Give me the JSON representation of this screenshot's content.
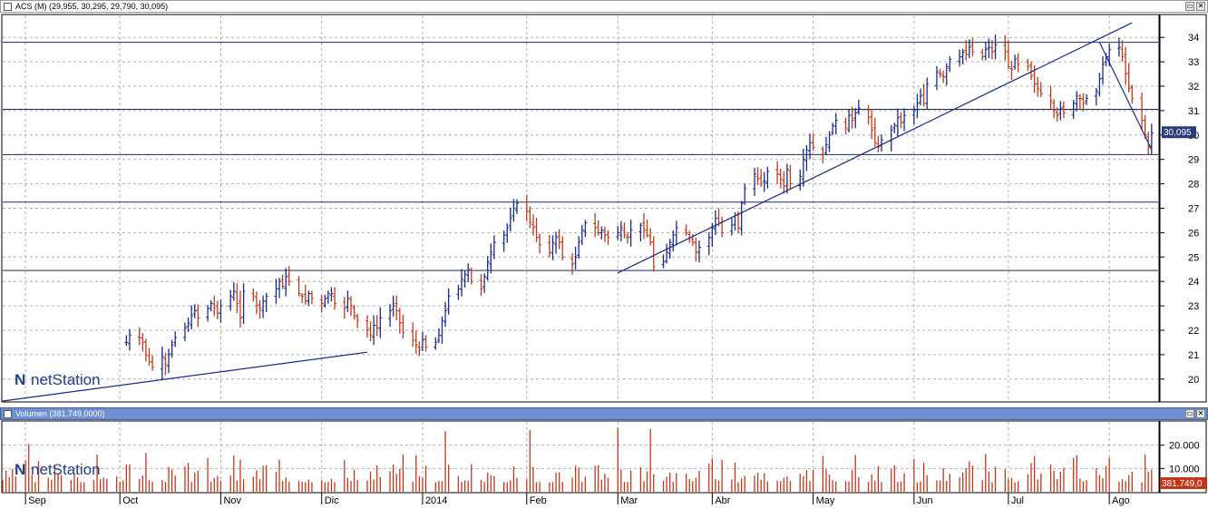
{
  "price_panel": {
    "title": "ACS (M) (29,955, 30,295, 29,790, 30,095)",
    "last_price_label": "30,095",
    "watermark": "netStation"
  },
  "volume_panel": {
    "title": "Volumen (381.749,0000)",
    "last_volume_label": "381.749,0",
    "watermark": "netStation"
  },
  "window_buttons": {
    "minimize": "▭",
    "close": "✕"
  },
  "colors": {
    "up_bar": "#1a2a8c",
    "down_bar": "#c0391b",
    "volume_bar": "#c0391b",
    "line": "#1a2a8c",
    "volume_title_bg": "#6f8fd1"
  },
  "chart_data": [
    {
      "type": "ohlc",
      "x_labels": [
        "Sep",
        "Oct",
        "Nov",
        "Dic",
        "2014",
        "Feb",
        "Mar",
        "Abr",
        "May",
        "Jun",
        "Jul",
        "Ago"
      ],
      "yticks": [
        20,
        21,
        22,
        23,
        24,
        25,
        26,
        27,
        28,
        29,
        30,
        31,
        32,
        33,
        34
      ],
      "ylim": [
        19.1,
        34.9
      ],
      "last_close": 30.095,
      "grid": true,
      "horizontal_levels": [
        33.8,
        31.05,
        29.2,
        27.25,
        24.45
      ],
      "trendlines": [
        {
          "from": [
            "2013-08-26",
            19.1
          ],
          "to": [
            "2013-12-16",
            21.1
          ]
        },
        {
          "from": [
            "2014-03-03",
            24.35
          ],
          "to": [
            "2014-08-08",
            34.6
          ]
        },
        {
          "from": [
            "2014-07-29",
            33.8
          ],
          "to": [
            "2014-08-14",
            29.4
          ]
        }
      ],
      "closes": [
        21.5,
        21.8,
        21.7,
        21.5,
        21.0,
        20.7,
        20.5,
        20.9,
        20.6,
        21.0,
        21.4,
        21.7,
        22.1,
        22.3,
        22.6,
        22.8,
        22.5,
        22.9,
        23.1,
        22.9,
        22.7,
        23.0,
        23.4,
        23.6,
        23.1,
        22.5,
        23.6,
        23.4,
        23.0,
        22.9,
        23.2,
        23.4,
        23.7,
        24.0,
        23.8,
        24.2,
        24.0,
        23.5,
        23.4,
        23.2,
        23.5,
        23.3,
        23.1,
        23.3,
        23.5,
        23.5,
        23.1,
        22.9,
        23.3,
        23.0,
        22.6,
        22.4,
        22.0,
        21.8,
        22.2,
        22.1,
        22.5,
        22.8,
        23.0,
        22.8,
        22.3,
        21.9,
        21.6,
        21.4,
        21.2,
        21.6,
        21.3,
        21.5,
        21.8,
        22.4,
        22.8,
        23.4,
        23.7,
        24.1,
        24.3,
        24.5,
        24.0,
        23.7,
        24.2,
        24.8,
        25.2,
        25.6,
        25.9,
        26.2,
        26.6,
        27.0,
        27.2,
        26.9,
        26.4,
        26.2,
        25.8,
        25.5,
        25.2,
        25.6,
        25.8,
        25.6,
        25.0,
        24.7,
        25.0,
        25.6,
        26.1,
        26.4,
        26.2,
        26.0,
        26.1,
        25.9,
        25.8,
        26.0,
        26.2,
        25.9,
        25.8,
        26.1,
        26.3,
        26.1,
        25.9,
        25.6,
        24.6,
        24.8,
        25.2,
        25.6,
        25.9,
        26.2,
        26.0,
        25.8,
        25.6,
        25.2,
        25.4,
        25.8,
        26.2,
        26.6,
        26.4,
        26.0,
        26.3,
        26.7,
        26.2,
        27.2,
        27.8,
        28.4,
        28.2,
        28.0,
        28.1,
        28.5,
        28.4,
        28.2,
        27.9,
        28.6,
        28.0,
        28.3,
        29.0,
        29.4,
        29.7,
        29.5,
        29.2,
        29.6,
        30.0,
        30.4,
        30.6,
        30.3,
        30.8,
        30.6,
        30.9,
        31.1,
        30.7,
        30.2,
        29.7,
        29.5,
        29.8,
        30.2,
        30.4,
        30.7,
        30.5,
        30.8,
        31.0,
        31.3,
        31.6,
        31.3,
        32.1,
        32.6,
        32.5,
        32.4,
        32.8,
        33.1,
        33.2,
        33.4,
        33.3,
        33.6,
        33.4,
        33.2,
        33.5,
        33.6,
        33.4,
        33.7,
        33.4,
        32.8,
        32.7,
        33.1,
        32.9,
        32.8,
        32.4,
        32.1,
        31.9,
        31.7,
        31.4,
        31.0,
        30.8,
        31.1,
        30.9,
        31.3,
        31.6,
        31.5,
        31.3,
        31.5,
        31.8,
        32.3,
        32.9,
        33.2,
        33.5,
        33.6,
        33.2,
        32.5,
        31.9,
        31.5,
        30.6,
        30.0,
        29.5,
        30.095
      ],
      "series": [
        {
          "values": []
        }
      ]
    },
    {
      "type": "bar",
      "title": "Volumen",
      "yticks": [
        10000000,
        20000000
      ],
      "ytick_labels": [
        "10.000",
        "20.000"
      ],
      "last_value": 381749,
      "notable_spikes": [
        {
          "date": "2013-09-03",
          "value": 20500000
        },
        {
          "date": "2014-01-09",
          "value": 26000000
        },
        {
          "date": "2014-02-04",
          "value": 26500000
        },
        {
          "date": "2014-03-03",
          "value": 27500000
        },
        {
          "date": "2014-03-13",
          "value": 27000000
        },
        {
          "date": "2014-08-12",
          "value": 16000000
        }
      ],
      "typical_range": [
        4000000,
        14000000
      ]
    }
  ]
}
